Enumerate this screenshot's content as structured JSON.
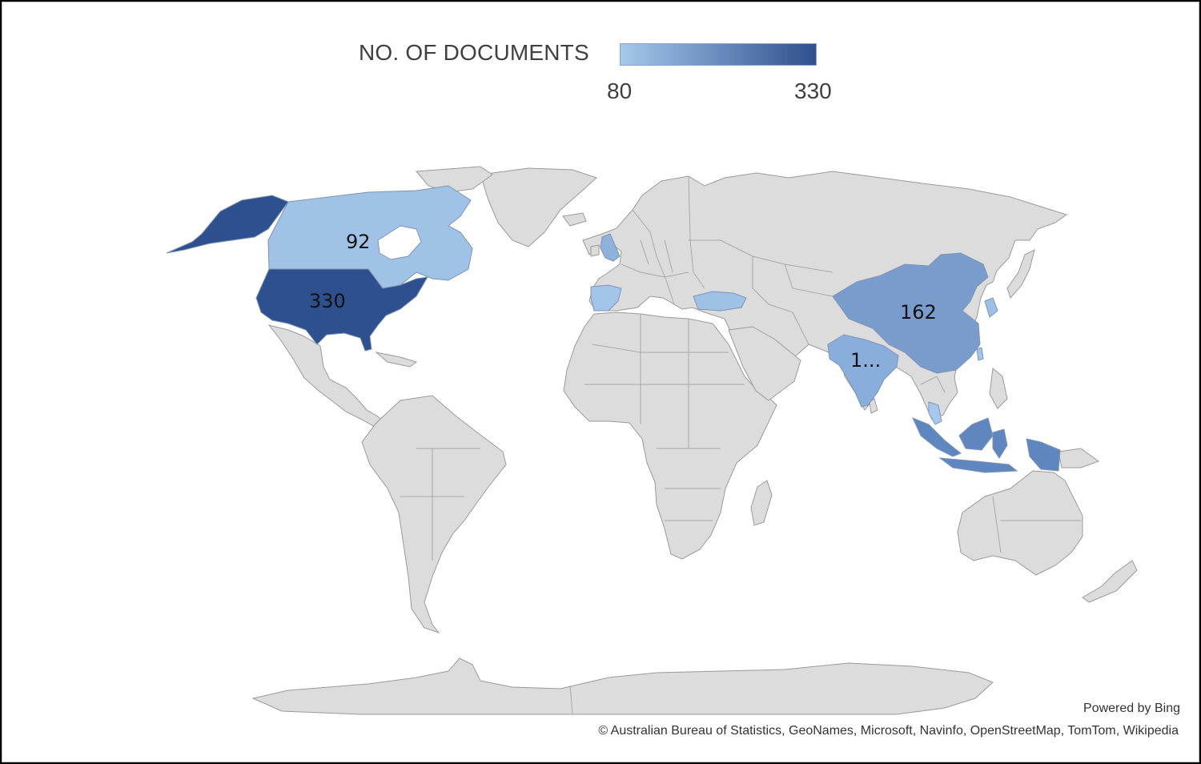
{
  "legend": {
    "title": "NO. OF DOCUMENTS",
    "min_label": "80",
    "max_label": "330",
    "min_color": "#a6c8ea",
    "max_color": "#2f4f8f"
  },
  "regions": [
    {
      "name": "United States",
      "value": 330,
      "label": "330",
      "color": "#2f508f"
    },
    {
      "name": "China",
      "value": 162,
      "label": "162",
      "color": "#7a9ccc"
    },
    {
      "name": "Canada",
      "value": 92,
      "label": "92",
      "color": "#a0c2e6"
    },
    {
      "name": "India",
      "label": "1...",
      "color": "#8aaedb"
    },
    {
      "name": "Indonesia",
      "color": "#5f86bf"
    },
    {
      "name": "United Kingdom",
      "color": "#8fb2dd"
    },
    {
      "name": "Spain",
      "color": "#a2c4e8"
    },
    {
      "name": "Turkey",
      "color": "#9fc1e6"
    },
    {
      "name": "South Korea",
      "color": "#9ec0e6"
    },
    {
      "name": "Malaysia",
      "color": "#a6c8ea"
    },
    {
      "name": "Taiwan",
      "color": "#a3c5e9"
    }
  ],
  "land_color": "#dcdcdc",
  "credits": {
    "powered_by": "Powered by Bing",
    "sources": "© Australian Bureau of Statistics, GeoNames, Microsoft, Navinfo, OpenStreetMap, TomTom, Wikipedia"
  }
}
